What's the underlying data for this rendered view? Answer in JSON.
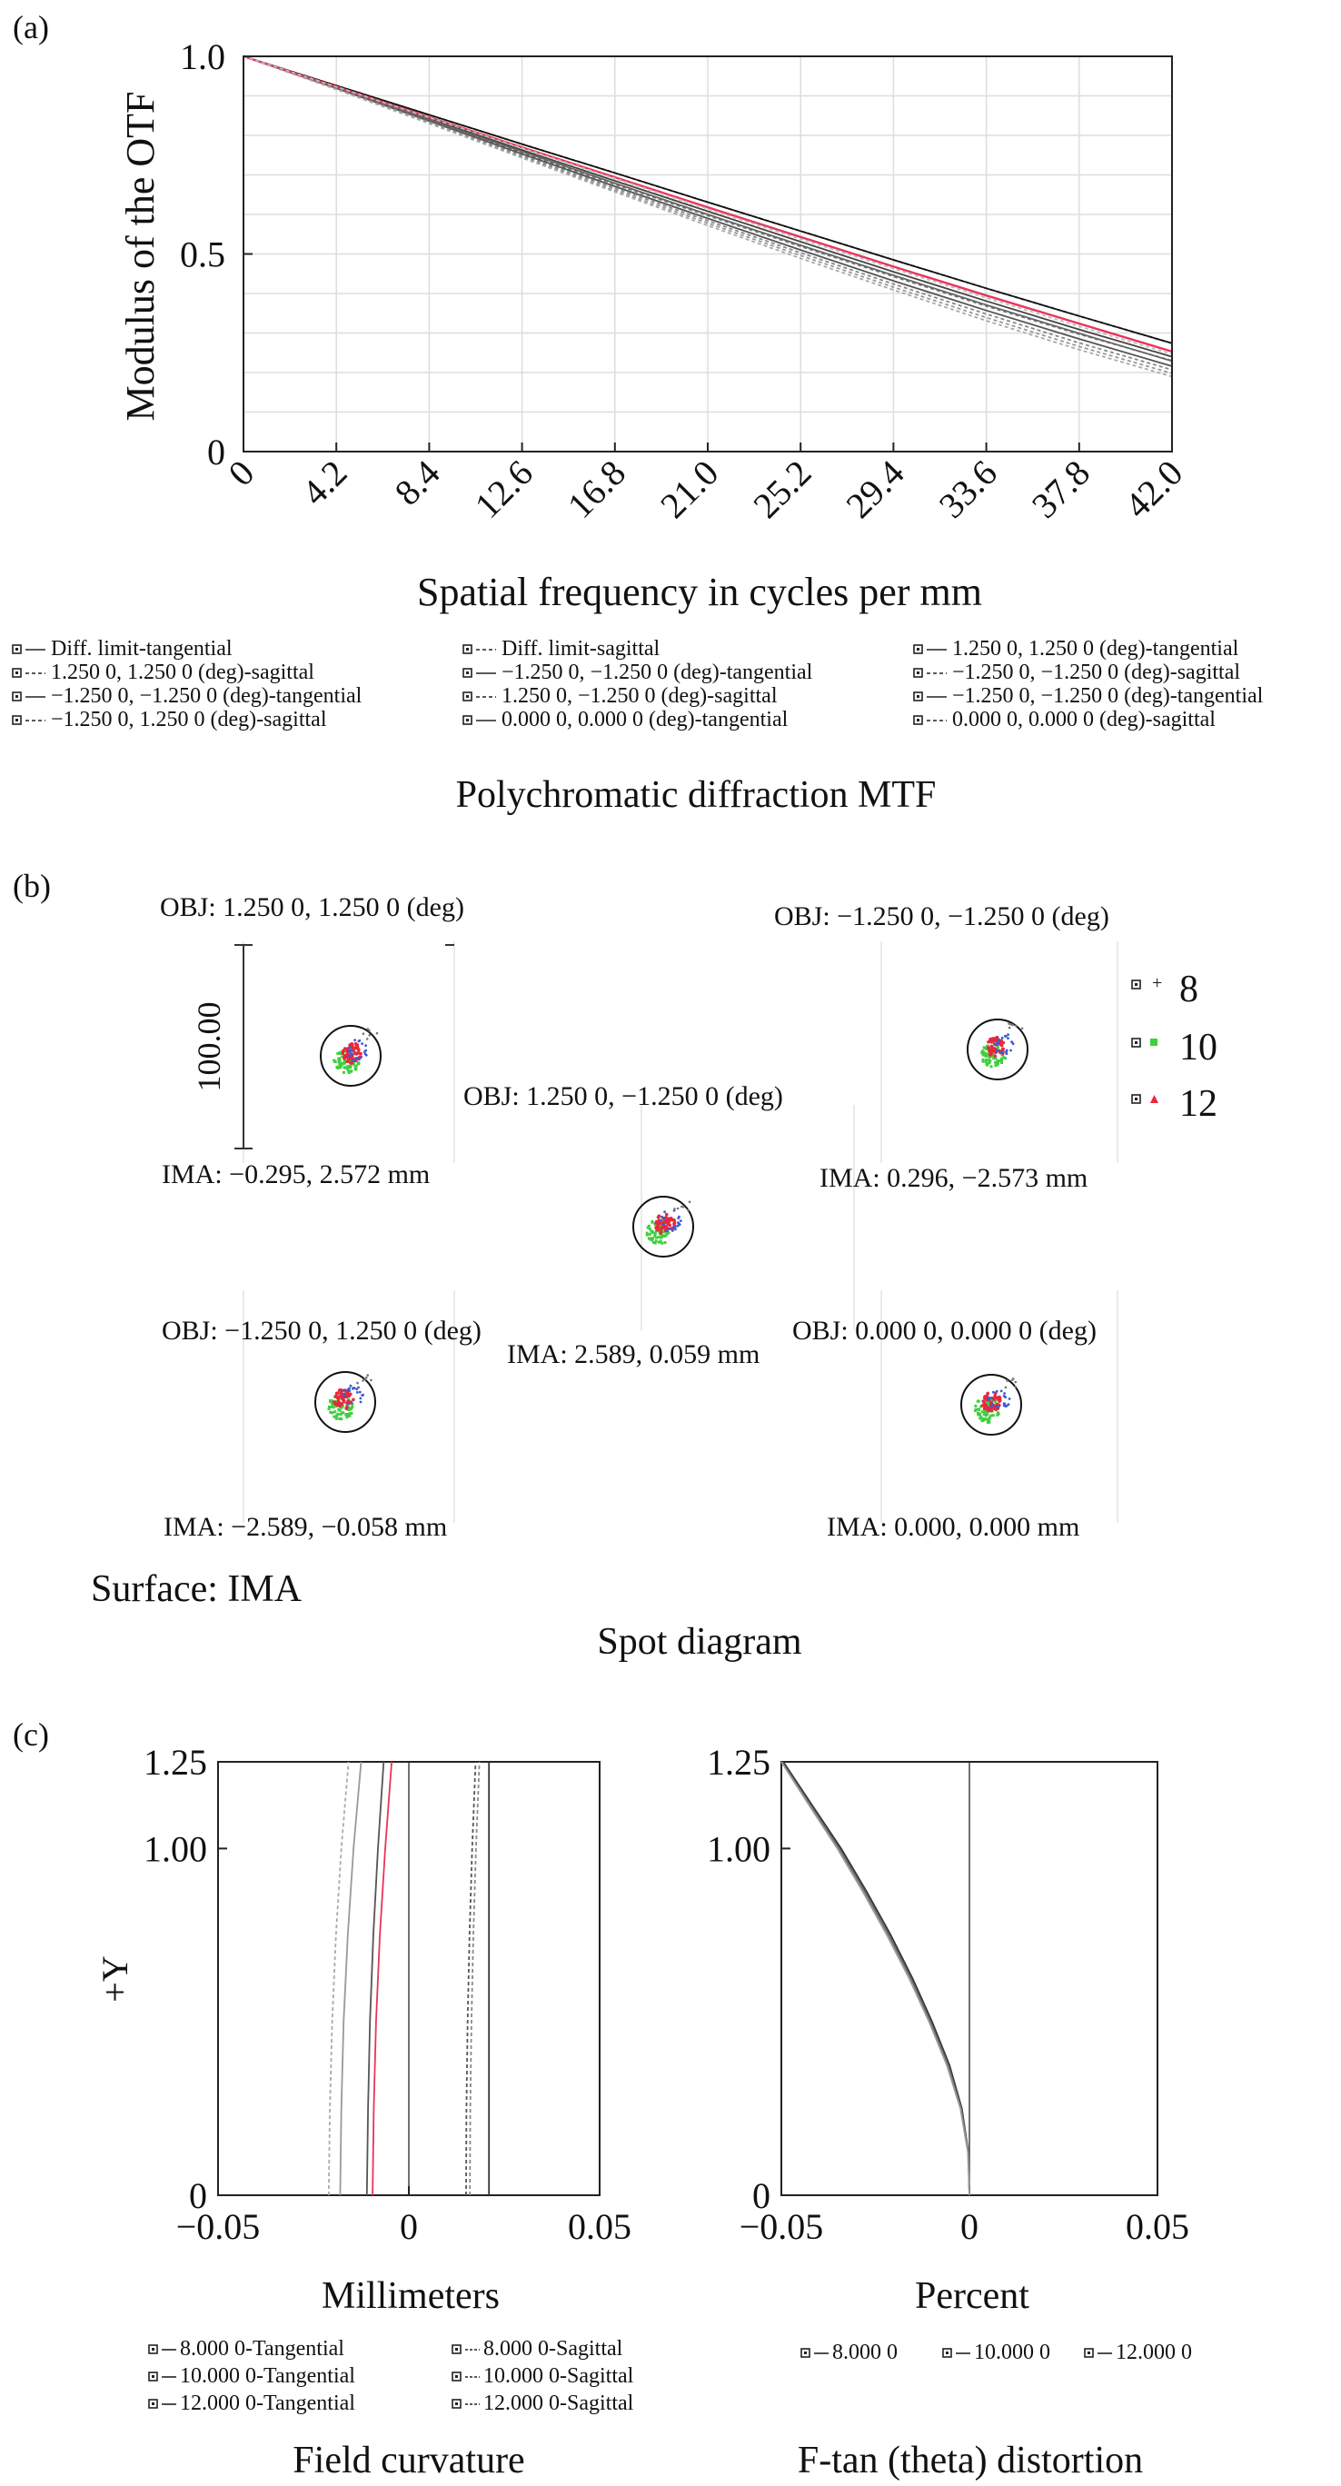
{
  "chart_data": [
    {
      "panel": "(a)",
      "type": "line",
      "title": "Polychromatic diffraction MTF",
      "xlabel": "Spatial frequency in cycles per mm",
      "ylabel": "Modulus of the OTF",
      "xlim": [
        0,
        42
      ],
      "ylim": [
        0,
        1.0
      ],
      "xticks": [
        "0",
        "4.2",
        "8.4",
        "12.6",
        "16.8",
        "21.0",
        "25.2",
        "29.4",
        "33.6",
        "37.8",
        "42.0"
      ],
      "yticks": [
        "0",
        "0.5",
        "1.0"
      ],
      "x": [
        0,
        4.2,
        8.4,
        12.6,
        16.8,
        21.0,
        25.2,
        29.4,
        33.6,
        37.8,
        42.0
      ],
      "grid": true,
      "legend_columns": 3,
      "series": [
        {
          "name": "Diff. limit-tangential",
          "color": "#111111",
          "dash": "",
          "values": [
            1.0,
            0.926,
            0.852,
            0.778,
            0.705,
            0.631,
            0.558,
            0.485,
            0.413,
            0.343,
            0.274
          ]
        },
        {
          "name": "Diff. limit-sagittal",
          "color": "#111111",
          "dash": "4 3",
          "values": [
            1.0,
            0.926,
            0.852,
            0.778,
            0.705,
            0.631,
            0.558,
            0.485,
            0.413,
            0.343,
            0.274
          ]
        },
        {
          "name": "1.250 0, 1.250 0 (deg)-tangential",
          "color": "#444444",
          "dash": "",
          "values": [
            1.0,
            0.922,
            0.842,
            0.763,
            0.685,
            0.608,
            0.531,
            0.455,
            0.381,
            0.309,
            0.24
          ]
        },
        {
          "name": "1.250 0, 1.250 0 (deg)-sagittal",
          "color": "#777777",
          "dash": "4 3",
          "values": [
            1.0,
            0.92,
            0.838,
            0.756,
            0.676,
            0.597,
            0.519,
            0.443,
            0.368,
            0.297,
            0.23
          ]
        },
        {
          "name": "−1.250 0, −1.250 0 (deg)-tangential",
          "color": "#555555",
          "dash": "",
          "values": [
            1.0,
            0.919,
            0.836,
            0.753,
            0.671,
            0.59,
            0.51,
            0.432,
            0.357,
            0.285,
            0.216
          ]
        },
        {
          "name": "−1.250 0, −1.250 0 (deg)-sagittal",
          "color": "#999999",
          "dash": "4 3",
          "values": [
            1.0,
            0.917,
            0.832,
            0.746,
            0.661,
            0.578,
            0.496,
            0.416,
            0.339,
            0.266,
            0.198
          ]
        },
        {
          "name": "1.250 0, −1.250 0 (deg)-sagittal",
          "color": "#888888",
          "dash": "4 3",
          "values": [
            1.0,
            0.918,
            0.834,
            0.749,
            0.666,
            0.584,
            0.503,
            0.424,
            0.348,
            0.275,
            0.207
          ]
        },
        {
          "name": "−1.250 0, −1.250 0 (deg)-tangential",
          "color": "#666666",
          "dash": "",
          "values": [
            1.0,
            0.921,
            0.84,
            0.759,
            0.679,
            0.6,
            0.522,
            0.446,
            0.371,
            0.299,
            0.229
          ]
        },
        {
          "name": "−1.250 0, 1.250 0 (deg)-sagittal",
          "color": "#aaaaaa",
          "dash": "4 3",
          "values": [
            1.0,
            0.916,
            0.83,
            0.743,
            0.657,
            0.572,
            0.489,
            0.409,
            0.331,
            0.258,
            0.19
          ]
        },
        {
          "name": "0.000 0, 0.000 0 (deg)-tangential",
          "color": "#e8355a",
          "dash": "",
          "values": [
            1.0,
            0.923,
            0.846,
            0.77,
            0.694,
            0.618,
            0.543,
            0.468,
            0.395,
            0.324,
            0.253
          ]
        },
        {
          "name": "0.000 0, 0.000 0 (deg)-sagittal",
          "color": "#bbbbbb",
          "dash": "4 3",
          "values": [
            1.0,
            0.923,
            0.845,
            0.768,
            0.691,
            0.614,
            0.538,
            0.463,
            0.389,
            0.317,
            0.247
          ]
        }
      ],
      "legend_rows": [
        [
          "Diff. limit-tangential",
          "Diff. limit-sagittal",
          "1.250 0, 1.250 0 (deg)-tangential"
        ],
        [
          "1.250 0, 1.250 0 (deg)-sagittal",
          "−1.250 0, −1.250 0 (deg)-tangential",
          "−1.250 0, −1.250 0 (deg)-sagittal"
        ],
        [
          "−1.250 0, −1.250 0 (deg)-tangential",
          "1.250 0, −1.250 0 (deg)-sagittal",
          "−1.250 0, −1.250 0 (deg)-tangential"
        ],
        [
          "−1.250 0, 1.250 0 (deg)-sagittal",
          "0.000 0, 0.000 0 (deg)-tangential",
          "0.000 0, 0.000 0 (deg)-sagittal"
        ]
      ]
    },
    {
      "panel": "(b)",
      "type": "scatter",
      "title": "Spot diagram",
      "surface": "Surface: IMA",
      "scale_label": "100.00",
      "legend": [
        {
          "name": "8",
          "color": "#3b5bd6",
          "marker": "+"
        },
        {
          "name": "10",
          "color": "#3fcf3f",
          "marker": "square"
        },
        {
          "name": "12",
          "color": "#e8283c",
          "marker": "triangle"
        }
      ],
      "fields": [
        {
          "obj": "OBJ: 1.250 0, 1.250 0 (deg)",
          "ima": "IMA: −0.295, 2.572 mm"
        },
        {
          "obj": "OBJ: −1.250 0, −1.250 0 (deg)",
          "ima": "IMA: 0.296, −2.573 mm"
        },
        {
          "obj": "OBJ: 1.250 0, −1.250 0 (deg)",
          "ima": "IMA: 2.589, 0.059 mm"
        },
        {
          "obj": "OBJ: −1.250 0, 1.250 0 (deg)",
          "ima": "IMA: −2.589, −0.058 mm"
        },
        {
          "obj": "OBJ: 0.000 0, 0.000 0 (deg)",
          "ima": "IMA: 0.000, 0.000 mm"
        }
      ]
    },
    {
      "panel": "(c)",
      "type": "line",
      "title": "Field curvature",
      "xlabel": "Millimeters",
      "ylabel": "+Y",
      "xlim": [
        -0.05,
        0.05
      ],
      "ylim": [
        0,
        1.25
      ],
      "xticks": [
        "−0.05",
        "0",
        "0.05"
      ],
      "yticks": [
        "0",
        "1.00",
        "1.25"
      ],
      "y": [
        0,
        0.25,
        0.5,
        0.75,
        1.0,
        1.25
      ],
      "series": [
        {
          "name": "8.000 0-Tangential",
          "color": "#555555",
          "dash": "",
          "x": [
            -0.011,
            -0.0107,
            -0.0102,
            -0.0093,
            -0.0081,
            -0.0066
          ]
        },
        {
          "name": "8.000 0-Sagittal",
          "color": "#555555",
          "dash": "4 3",
          "x": [
            0.015,
            0.0151,
            0.0154,
            0.0159,
            0.0166,
            0.0175
          ]
        },
        {
          "name": "10.000 0-Tangential",
          "color": "#e8355a",
          "dash": "",
          "x": [
            -0.0095,
            -0.0092,
            -0.0086,
            -0.0076,
            -0.0062,
            -0.0045
          ]
        },
        {
          "name": "10.000 0-Sagittal",
          "color": "#888888",
          "dash": "4 3",
          "x": [
            0.016,
            0.0161,
            0.0164,
            0.0169,
            0.0176,
            0.0185
          ]
        },
        {
          "name": "12.000 0-Tangential",
          "color": "#999999",
          "dash": "",
          "x": [
            -0.018,
            -0.0177,
            -0.0171,
            -0.016,
            -0.0145,
            -0.0125
          ]
        },
        {
          "name": "12.000 0-Sagittal",
          "color": "#aaaaaa",
          "dash": "4 3",
          "x": [
            -0.021,
            -0.0207,
            -0.0201,
            -0.0191,
            -0.0177,
            -0.0158
          ]
        },
        {
          "name": "12.000 0-Sagittal",
          "color": "#333333",
          "dash": "",
          "x": [
            0.021,
            0.021,
            0.021,
            0.021,
            0.021,
            0.021
          ]
        }
      ],
      "legend_rows": [
        [
          "8.000 0-Tangential",
          "8.000 0-Sagittal"
        ],
        [
          "10.000 0-Tangential",
          "10.000 0-Sagittal"
        ],
        [
          "12.000 0-Tangential",
          "12.000 0-Sagittal"
        ]
      ]
    },
    {
      "panel": "(c)",
      "type": "line",
      "title": "F-tan (theta) distortion",
      "xlabel": "Percent",
      "ylabel": "",
      "xlim": [
        -0.05,
        0.05
      ],
      "ylim": [
        0,
        1.25
      ],
      "xticks": [
        "−0.05",
        "0",
        "0.05"
      ],
      "yticks": [
        "0",
        "1.00",
        "1.25"
      ],
      "y": [
        0,
        0.125,
        0.25,
        0.375,
        0.5,
        0.625,
        0.75,
        0.875,
        1.0,
        1.125,
        1.25
      ],
      "series": [
        {
          "name": "8.000 0",
          "color": "#333333",
          "x": [
            0,
            -0.0003,
            -0.002,
            -0.0053,
            -0.0099,
            -0.0151,
            -0.0209,
            -0.0273,
            -0.0341,
            -0.0418,
            -0.0495
          ]
        },
        {
          "name": "10.000 0",
          "color": "#666666",
          "x": [
            0,
            -0.0003,
            -0.0022,
            -0.0056,
            -0.0103,
            -0.0155,
            -0.0214,
            -0.0278,
            -0.0346,
            -0.0422,
            -0.0499
          ]
        },
        {
          "name": "12.000 0",
          "color": "#999999",
          "x": [
            0,
            -0.0004,
            -0.0024,
            -0.006,
            -0.0107,
            -0.016,
            -0.0219,
            -0.0283,
            -0.0351,
            -0.0426,
            -0.05
          ]
        }
      ],
      "legend": [
        "8.000 0",
        "10.000 0",
        "12.000 0"
      ]
    }
  ]
}
